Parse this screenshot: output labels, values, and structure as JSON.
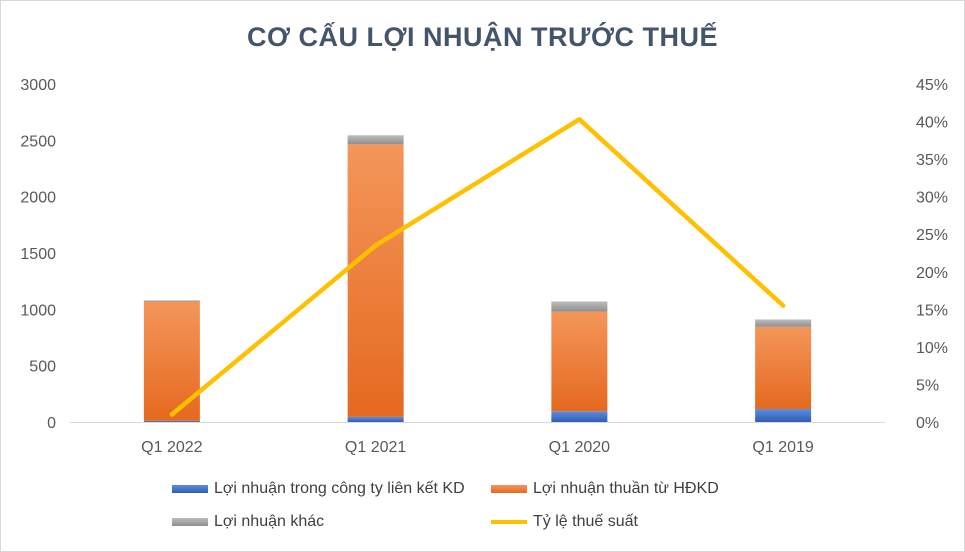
{
  "chart_data": {
    "type": "bar",
    "stacked": true,
    "title": "CƠ CẤU LỢI NHUẬN TRƯỚC THUẾ",
    "categories": [
      "Q1 2022",
      "Q1 2021",
      "Q1 2020",
      "Q1 2019"
    ],
    "y_left": {
      "ylim": [
        0,
        3000
      ],
      "ticks": [
        "0",
        "500",
        "1000",
        "1500",
        "2000",
        "2500",
        "3000"
      ]
    },
    "y_right": {
      "ylim": [
        0,
        45
      ],
      "ticks": [
        "0%",
        "5%",
        "10%",
        "15%",
        "20%",
        "25%",
        "30%",
        "35%",
        "40%",
        "45%"
      ]
    },
    "series": [
      {
        "name": "Lợi nhuận trong công ty liên kết KD",
        "type": "bar",
        "color": "#4472c4",
        "values": [
          10,
          45,
          95,
          115
        ]
      },
      {
        "name": "Lợi nhuận thuần từ HĐKD",
        "type": "bar",
        "color": "#ed7d31",
        "values": [
          1060,
          2420,
          885,
          730
        ]
      },
      {
        "name": "Lợi nhuận khác",
        "type": "bar",
        "color": "#a5a5a5",
        "values": [
          10,
          80,
          90,
          65
        ]
      },
      {
        "name": "Tỷ lệ thuế suất",
        "type": "line",
        "axis": "right",
        "color": "#ffc000",
        "values": [
          1,
          23.5,
          40.3,
          15.5
        ]
      }
    ],
    "grid": false,
    "legend_position": "bottom"
  }
}
